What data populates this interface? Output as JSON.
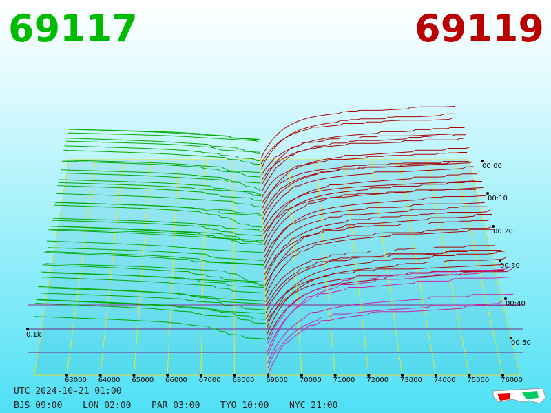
{
  "header": {
    "bid_price": "69117",
    "ask_price": "69119"
  },
  "axis": {
    "price_ticks": [
      "63000",
      "64000",
      "65000",
      "66000",
      "67000",
      "68000",
      "69000",
      "70000",
      "71000",
      "72000",
      "73000",
      "74000",
      "75000",
      "76000"
    ],
    "time_ticks": [
      "00:00",
      "00:10",
      "00:20",
      "00:30",
      "00:40",
      "00:50"
    ],
    "volume_label": "0.1k"
  },
  "footer": {
    "utc": "UTC 2024-10-21 01:00",
    "cities": [
      "BJS 09:00",
      "LON 02:00",
      "PAR 03:00",
      "TYO 10:00",
      "NYC 21:00"
    ]
  }
}
